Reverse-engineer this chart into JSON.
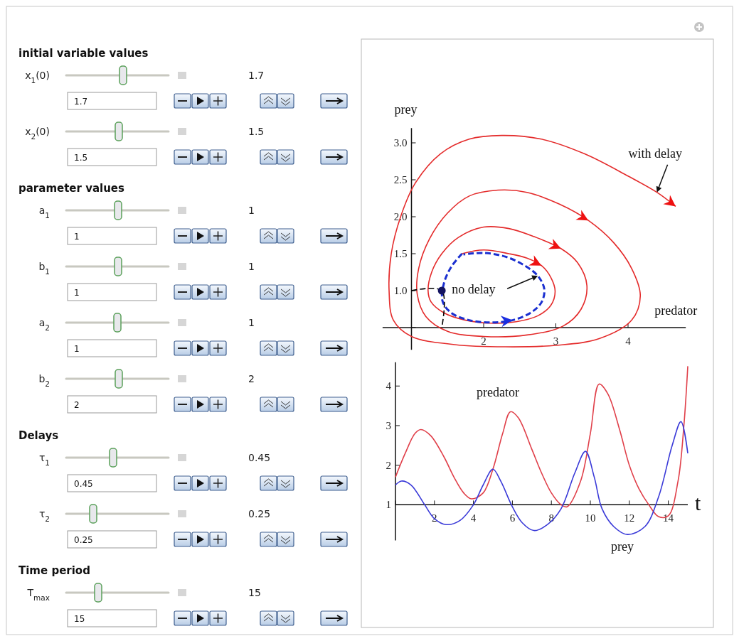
{
  "chart_data": [
    {
      "type": "other",
      "categories": [
        "x$_{1}$(0)",
        "x$_{2}$(0)",
        "a$_{1}$",
        "b$_{1}$",
        "a$_{2}$",
        "b$_{2}$",
        "τ$_{1}$",
        "τ$_{2}$",
        "T$_{max}$"
      ],
      "value_labels": [
        "1.7",
        "1.5",
        "1",
        "1",
        "1",
        "2",
        "0.45",
        "0.25",
        "15"
      ],
      "annotations": [
        {
          "text": "initial variable values",
          "x": "x$_{1}$(0)"
        },
        {
          "text": "parameter values",
          "x": "a$_{1}$"
        },
        {
          "text": "Delays",
          "x": "τ$_{1}$"
        },
        {
          "text": "Time period",
          "x": "T$_{max}$"
        }
      ]
    },
    {
      "type": "line",
      "xlabel": "predator",
      "ylabel": "prey",
      "xlim": [
        0.6,
        4.8
      ],
      "ylim": [
        0.2,
        3.2
      ],
      "xticks": [
        {
          "value": 1,
          "label": null
        },
        2,
        3,
        4
      ],
      "yticks": [
        {
          "value": 0.5,
          "label": null
        },
        {
          "value": 1,
          "label": "1.0"
        },
        1.5,
        {
          "value": 2,
          "label": "2.0"
        },
        2.5,
        {
          "value": 3,
          "label": "3.0"
        }
      ],
      "series": [
        {
          "color": "#e42b2b",
          "x": [
            1.7,
            2.0,
            2.35,
            2.6,
            2.8,
            2.93,
            2.99,
            2.93,
            2.75,
            2.45,
            2.1,
            1.75,
            1.45,
            1.27,
            1.23,
            1.28,
            1.42,
            1.65,
            2.0,
            2.35,
            2.7,
            3.07,
            3.3,
            3.43,
            3.35,
            3.1,
            2.6,
            2.0,
            1.5,
            1.2,
            1.08,
            1.1,
            1.25,
            1.5,
            1.8,
            2.2,
            2.6,
            3.05,
            3.45,
            3.8,
            4.05,
            4.17,
            4.05,
            3.6,
            3.0,
            2.3,
            1.6,
            1.0,
            0.75,
            0.69,
            0.72,
            0.85,
            1.05,
            1.4,
            1.8,
            2.25,
            2.8,
            3.4,
            4.0,
            4.4,
            4.66
          ],
          "values": [
            1.5,
            1.55,
            1.5,
            1.44,
            1.34,
            1.18,
            0.99,
            0.8,
            0.66,
            0.58,
            0.56,
            0.6,
            0.7,
            0.85,
            1.0,
            1.25,
            1.5,
            1.72,
            1.86,
            1.84,
            1.73,
            1.57,
            1.38,
            1.07,
            0.75,
            0.52,
            0.4,
            0.38,
            0.45,
            0.65,
            0.95,
            1.3,
            1.7,
            2.05,
            2.28,
            2.36,
            2.33,
            2.17,
            1.95,
            1.65,
            1.3,
            0.93,
            0.6,
            0.35,
            0.26,
            0.24,
            0.27,
            0.38,
            0.6,
            1.0,
            1.5,
            2.0,
            2.45,
            2.85,
            3.05,
            3.1,
            3.05,
            2.85,
            2.55,
            2.33,
            2.14
          ]
        },
        {
          "color": "#1a2fd0",
          "line_style": "dashed",
          "x": [
            1.7,
            1.55,
            1.45,
            1.43,
            1.55,
            1.8,
            2.1,
            2.4,
            2.65,
            2.8,
            2.84,
            2.75,
            2.55,
            2.3,
            2.0,
            1.72
          ],
          "values": [
            1.5,
            1.32,
            1.1,
            0.86,
            0.7,
            0.6,
            0.57,
            0.6,
            0.7,
            0.84,
            1.02,
            1.2,
            1.35,
            1.46,
            1.51,
            1.49
          ]
        },
        {
          "color": "#000000",
          "line_style": "dashed",
          "x": [
            1,
            1.42,
            1.42
          ],
          "values": [
            1,
            1,
            0.5
          ]
        },
        {
          "type": "scatter",
          "color": "#141460",
          "marker": "circle",
          "x": [
            1.42
          ],
          "values": [
            1
          ]
        }
      ],
      "annotations": [
        {
          "text": "with delay",
          "x": 4.4,
          "y": 2.33
        },
        {
          "text": "no delay",
          "x": 2.75,
          "y": 1.2
        }
      ]
    },
    {
      "type": "line",
      "xlabel": "t",
      "xlim": [
        0,
        15
      ],
      "ylim": [
        0.1,
        4.6
      ],
      "xticks": [
        {
          "value": 0,
          "label": null
        },
        2,
        4,
        6,
        8,
        10,
        12,
        14
      ],
      "yticks": [
        1,
        2,
        3,
        4
      ],
      "series": [
        {
          "name": "predator",
          "color": "#e0404a",
          "x": [
            0,
            0.5,
            1.0,
            1.3,
            1.8,
            2.5,
            3.0,
            3.5,
            3.9,
            4.5,
            5.0,
            5.5,
            5.9,
            6.3,
            7.0,
            7.5,
            8.0,
            8.5,
            8.8,
            9.5,
            10.0,
            10.45,
            10.9,
            11.5,
            12.0,
            12.5,
            13.0,
            13.5,
            14.0,
            14.5,
            14.8,
            15.0
          ],
          "values": [
            1.7,
            2.3,
            2.8,
            2.9,
            2.75,
            2.2,
            1.7,
            1.3,
            1.15,
            1.3,
            1.9,
            2.8,
            3.35,
            3.2,
            2.4,
            1.8,
            1.3,
            1.0,
            0.95,
            1.6,
            2.8,
            4.05,
            3.8,
            2.9,
            2.0,
            1.4,
            1.0,
            0.7,
            0.72,
            1.6,
            3.0,
            4.5
          ]
        },
        {
          "name": "prey",
          "color": "#3a3ad8",
          "x": [
            0,
            0.3,
            0.8,
            1.5,
            2.0,
            2.6,
            3.3,
            4.0,
            4.5,
            5.0,
            5.4,
            6.0,
            6.5,
            7.1,
            7.8,
            8.5,
            9.2,
            9.75,
            10.2,
            10.6,
            11.2,
            11.9,
            12.8,
            13.5,
            14.2,
            14.65,
            15.0
          ],
          "values": [
            1.5,
            1.6,
            1.5,
            1.0,
            0.65,
            0.5,
            0.6,
            1.0,
            1.5,
            1.9,
            1.6,
            0.95,
            0.55,
            0.35,
            0.5,
            0.9,
            1.8,
            2.35,
            1.7,
            0.9,
            0.45,
            0.25,
            0.45,
            1.2,
            2.5,
            3.1,
            2.3
          ]
        }
      ]
    }
  ]
}
